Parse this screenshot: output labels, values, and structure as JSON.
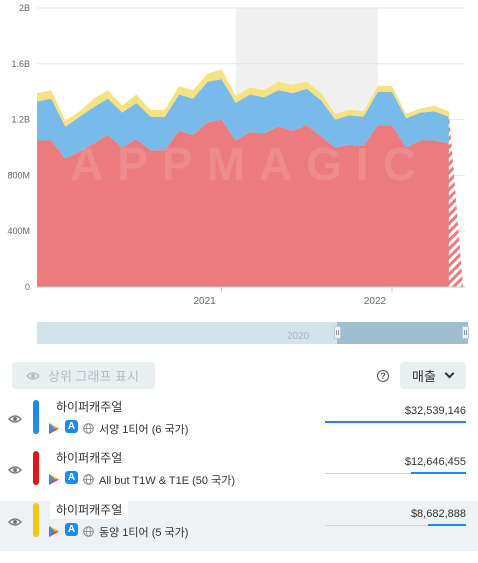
{
  "chart_data": {
    "type": "area",
    "stacked": true,
    "y_ticks": [
      "0",
      "400M",
      "800M",
      "1.2B",
      "1.6B",
      "2B"
    ],
    "ylim": [
      0,
      2000000000
    ],
    "x_ticks": [
      "2021",
      "2022"
    ],
    "x_tick_positions": [
      13,
      25
    ],
    "n_points": 31,
    "highlight_range": [
      14,
      24
    ],
    "watermark": "APPMAGIC",
    "projected_last_point": true,
    "series": [
      {
        "name": "All but T1W & T1E (50 국가)",
        "color": "#ec7b7d",
        "values": [
          1050,
          1050,
          920,
          970,
          1030,
          1090,
          1000,
          1060,
          980,
          980,
          1120,
          1090,
          1180,
          1200,
          1050,
          1110,
          1100,
          1150,
          1120,
          1160,
          1080,
          1000,
          1020,
          1010,
          1160,
          1160,
          1000,
          1050,
          1050,
          1030,
          980
        ]
      },
      {
        "name": "서양 1티어 (6 국가)",
        "color": "#78baea",
        "values": [
          280,
          300,
          230,
          250,
          260,
          260,
          250,
          260,
          240,
          240,
          260,
          260,
          290,
          290,
          270,
          270,
          260,
          260,
          270,
          260,
          260,
          200,
          210,
          210,
          240,
          240,
          210,
          200,
          210,
          190,
          190
        ]
      },
      {
        "name": "동양 1티어 (5 국가)",
        "color": "#f6e27f",
        "values": [
          60,
          60,
          40,
          40,
          60,
          60,
          50,
          60,
          50,
          50,
          60,
          60,
          60,
          70,
          50,
          50,
          50,
          60,
          60,
          50,
          50,
          40,
          40,
          40,
          40,
          40,
          30,
          30,
          40,
          40,
          40
        ]
      }
    ]
  },
  "scrollbar": {
    "label": "2020"
  },
  "toolbar": {
    "show_top_label": "상위 그래프 표시",
    "help_label": "?",
    "metric_label": "매출"
  },
  "rows": [
    {
      "title": "하이퍼캐주얼",
      "region": "서양 1티어 (6 국가)",
      "value": "$32,539,146",
      "fraction": 1.0,
      "color": "#1a8cf0"
    },
    {
      "title": "하이퍼캐주얼",
      "region": "All but T1W & T1E (50 국가)",
      "value": "$12,646,455",
      "fraction": 0.39,
      "color": "#e0161d"
    },
    {
      "title": "하이퍼캐주얼",
      "region": "동양 1티어 (5 국가)",
      "value": "$8,682,888",
      "fraction": 0.27,
      "color": "#f3c90d"
    }
  ]
}
